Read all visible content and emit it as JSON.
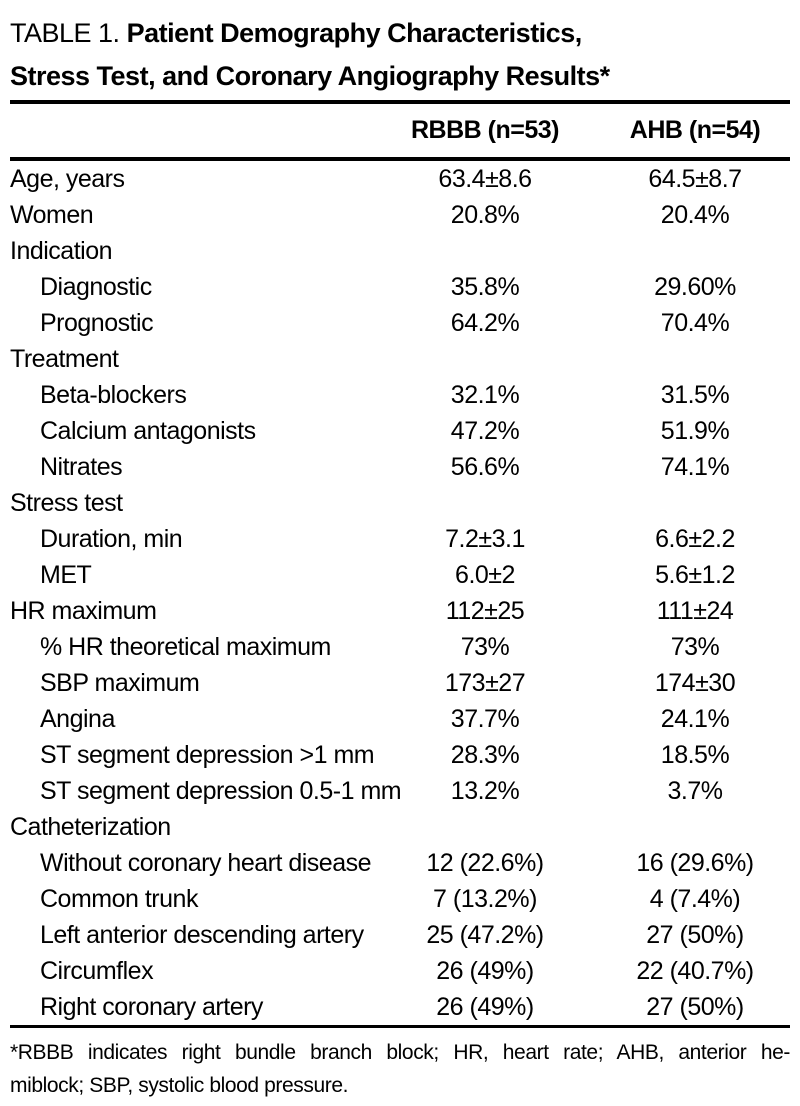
{
  "title": {
    "prefix": "TABLE 1.",
    "line1_bold": "Patient Demography Characteristics,",
    "line2_bold": "Stress Test, and Coronary Angiography Results*"
  },
  "table": {
    "columns": [
      "RBBB (n=53)",
      "AHB (n=54)"
    ],
    "rows": [
      {
        "label": "Age, years",
        "indent": false,
        "rbbb": "63.4±8.6",
        "ahb": "64.5±8.7"
      },
      {
        "label": "Women",
        "indent": false,
        "rbbb": "20.8%",
        "ahb": "20.4%"
      },
      {
        "label": "Indication",
        "indent": false,
        "rbbb": "",
        "ahb": ""
      },
      {
        "label": "Diagnostic",
        "indent": true,
        "rbbb": "35.8%",
        "ahb": "29.60%"
      },
      {
        "label": "Prognostic",
        "indent": true,
        "rbbb": "64.2%",
        "ahb": "70.4%"
      },
      {
        "label": "Treatment",
        "indent": false,
        "rbbb": "",
        "ahb": ""
      },
      {
        "label": "Beta-blockers",
        "indent": true,
        "rbbb": "32.1%",
        "ahb": "31.5%"
      },
      {
        "label": "Calcium antagonists",
        "indent": true,
        "rbbb": "47.2%",
        "ahb": "51.9%"
      },
      {
        "label": "Nitrates",
        "indent": true,
        "rbbb": "56.6%",
        "ahb": "74.1%"
      },
      {
        "label": "Stress test",
        "indent": false,
        "rbbb": "",
        "ahb": ""
      },
      {
        "label": "Duration, min",
        "indent": true,
        "rbbb": "7.2±3.1",
        "ahb": "6.6±2.2"
      },
      {
        "label": "MET",
        "indent": true,
        "rbbb": "6.0±2",
        "ahb": "5.6±1.2"
      },
      {
        "label": "HR maximum",
        "indent": false,
        "rbbb": "112±25",
        "ahb": "111±24"
      },
      {
        "label": "% HR theoretical maximum",
        "indent": true,
        "rbbb": "73%",
        "ahb": "73%"
      },
      {
        "label": "SBP maximum",
        "indent": true,
        "rbbb": "173±27",
        "ahb": "174±30"
      },
      {
        "label": "Angina",
        "indent": true,
        "rbbb": "37.7%",
        "ahb": "24.1%"
      },
      {
        "label": "ST segment depression >1 mm",
        "indent": true,
        "rbbb": "28.3%",
        "ahb": "18.5%"
      },
      {
        "label": "ST segment depression 0.5-1 mm",
        "indent": true,
        "rbbb": "13.2%",
        "ahb": "3.7%"
      },
      {
        "label": "Catheterization",
        "indent": false,
        "rbbb": "",
        "ahb": ""
      },
      {
        "label": "Without coronary heart disease",
        "indent": true,
        "rbbb": "12 (22.6%)",
        "ahb": "16 (29.6%)"
      },
      {
        "label": "Common trunk",
        "indent": true,
        "rbbb": "7 (13.2%)",
        "ahb": "4 (7.4%)"
      },
      {
        "label": "Left anterior descending artery",
        "indent": true,
        "rbbb": "25 (47.2%)",
        "ahb": "27 (50%)"
      },
      {
        "label": "Circumflex",
        "indent": true,
        "rbbb": "26 (49%)",
        "ahb": "22 (40.7%)"
      },
      {
        "label": "Right coronary artery",
        "indent": true,
        "rbbb": "26 (49%)",
        "ahb": "27 (50%)"
      }
    ]
  },
  "footnote": {
    "line1": "*RBBB indicates right bundle branch block; HR, heart rate; AHB, anterior he-",
    "line2": "miblock; SBP, systolic blood pressure."
  },
  "colors": {
    "text": "#000000",
    "background": "#ffffff",
    "rule": "#000000"
  }
}
